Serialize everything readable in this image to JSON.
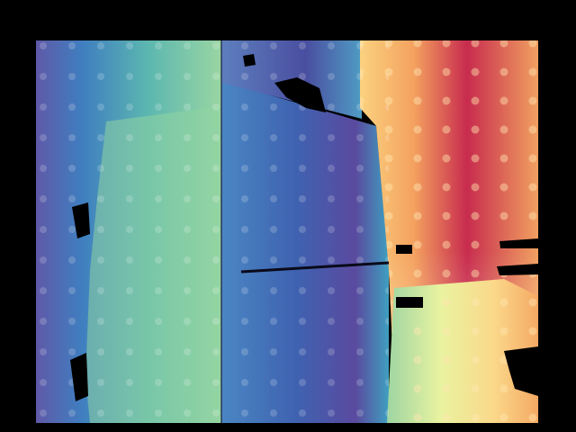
{
  "image": {
    "kind": "false-color depth map",
    "colormap": "spectral",
    "palette": {
      "background": "#000000",
      "deep_blue": "#3f4fa3",
      "blue": "#3f7fc0",
      "teal": "#5cb7b0",
      "green": "#8ed1a4",
      "pale_yellow": "#e9f3a0",
      "orange": "#f4a25f",
      "red_orange": "#e8674a",
      "dark_red": "#b0204a"
    },
    "regions": [
      "left-gradient-panel",
      "middle-blue-panel",
      "top-strip",
      "right-warm-panel",
      "bottom-right-yellow-patch",
      "dot-pattern",
      "missing-data-holes"
    ]
  }
}
